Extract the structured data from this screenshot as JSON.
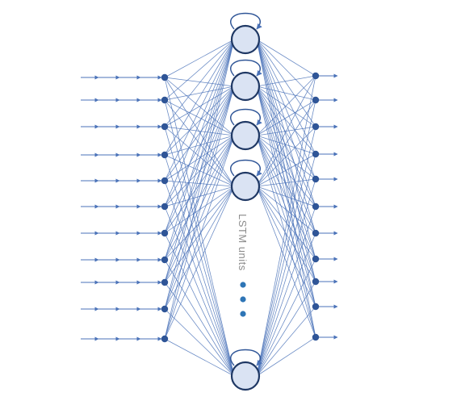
{
  "diagram": {
    "label": "LSTM units",
    "input_count": 11,
    "lstm_count": 5,
    "output_count": 11,
    "ellipsis_dots": 3,
    "colors": {
      "edges": "#4a72b8",
      "nodes": "#2f5597",
      "lstm_fill": "#dae3f3",
      "lstm_stroke": "#1f3864",
      "label": "#8c8c8c",
      "dots": "#2e75b6"
    }
  }
}
